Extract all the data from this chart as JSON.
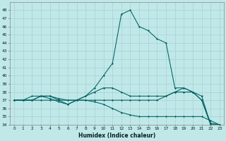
{
  "xlabel": "Humidex (Indice chaleur)",
  "bg_color": "#c0e8e8",
  "line_color": "#006060",
  "grid_color": "#a8d0d0",
  "ylim": [
    34,
    49
  ],
  "xlim": [
    -0.5,
    23.5
  ],
  "yticks": [
    34,
    35,
    36,
    37,
    38,
    39,
    40,
    41,
    42,
    43,
    44,
    45,
    46,
    47,
    48
  ],
  "xticks": [
    0,
    1,
    2,
    3,
    4,
    5,
    6,
    7,
    8,
    9,
    10,
    11,
    12,
    13,
    14,
    15,
    16,
    17,
    18,
    19,
    20,
    21,
    22,
    23
  ],
  "line1": [
    37.0,
    37.0,
    37.0,
    37.5,
    37.5,
    37.2,
    37.0,
    37.0,
    37.5,
    38.5,
    40.0,
    41.5,
    47.5,
    48.0,
    46.0,
    45.5,
    44.5,
    44.0,
    38.5,
    38.5,
    38.0,
    37.0,
    34.0,
    34.0
  ],
  "line2": [
    37.0,
    37.0,
    37.0,
    37.5,
    37.5,
    37.0,
    36.5,
    37.0,
    37.5,
    38.0,
    38.5,
    38.5,
    38.0,
    37.5,
    37.5,
    37.5,
    37.5,
    37.5,
    38.0,
    38.5,
    38.0,
    37.5,
    34.0,
    34.0
  ],
  "line3": [
    37.0,
    37.0,
    37.5,
    37.5,
    37.2,
    36.8,
    36.5,
    37.0,
    37.0,
    37.0,
    37.0,
    37.0,
    37.0,
    37.0,
    37.0,
    37.0,
    37.0,
    37.5,
    38.0,
    38.0,
    38.0,
    37.0,
    34.2,
    34.0
  ],
  "line4": [
    37.0,
    37.0,
    37.0,
    37.0,
    37.0,
    37.0,
    37.0,
    37.0,
    37.0,
    36.8,
    36.5,
    36.0,
    35.5,
    35.2,
    35.0,
    35.0,
    35.0,
    35.0,
    35.0,
    35.0,
    35.0,
    35.0,
    34.5,
    34.0
  ]
}
